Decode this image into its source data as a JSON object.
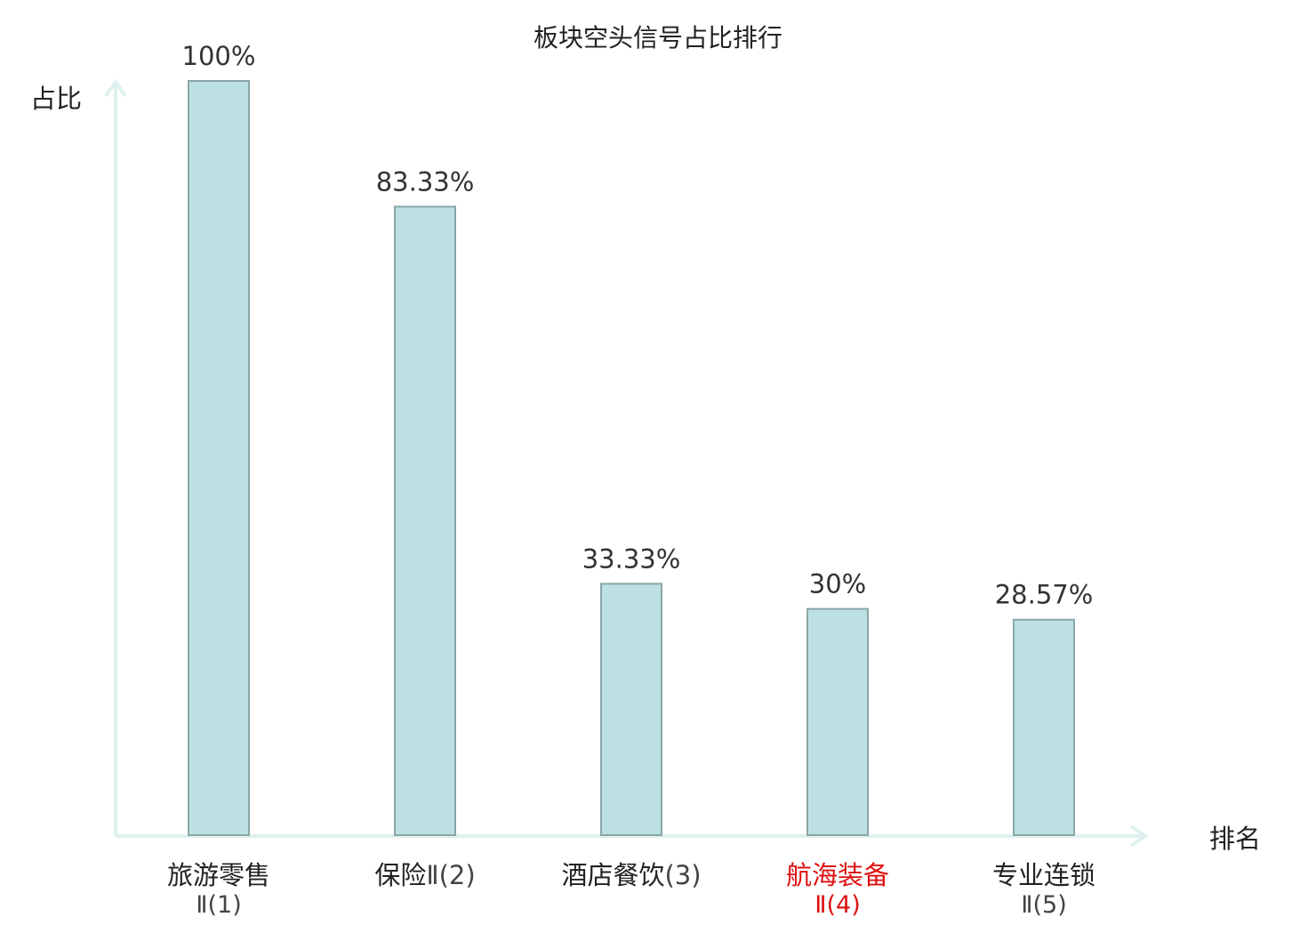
{
  "chart_data": {
    "type": "bar",
    "title": "板块空头信号占比排行",
    "ylabel": "占比",
    "xlabel": "排名",
    "ylim": [
      0,
      100
    ],
    "grid": false,
    "categories": [
      {
        "name": "旅游零售",
        "rank": "Ⅱ(1)",
        "highlight": false
      },
      {
        "name": "保险",
        "rank": "Ⅱ(2)",
        "highlight": false
      },
      {
        "name": "酒店餐饮",
        "rank": "(3)",
        "highlight": false
      },
      {
        "name": "航海装备",
        "rank": "Ⅱ(4)",
        "highlight": true
      },
      {
        "name": "专业连锁",
        "rank": "Ⅱ(5)",
        "highlight": false
      }
    ],
    "values": [
      100,
      83.33,
      33.33,
      30,
      28.57
    ],
    "value_labels": [
      "100%",
      "83.33%",
      "33.33%",
      "30%",
      "28.57%"
    ]
  },
  "colors": {
    "bar_fill": "#bde0e2",
    "bar_stroke": "#8aa6a6",
    "axis": "#dff1ee",
    "highlight_text": "#dd1111",
    "text": "#222222"
  }
}
